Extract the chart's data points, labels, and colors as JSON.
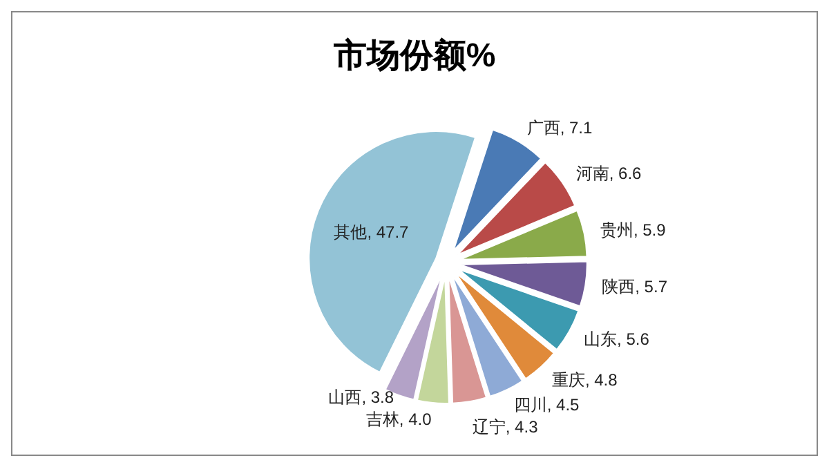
{
  "chart_data": {
    "type": "pie",
    "title": "市场份额%",
    "categories": [
      "广西",
      "河南",
      "贵州",
      "陕西",
      "山东",
      "重庆",
      "四川",
      "辽宁",
      "吉林",
      "山西",
      "其他"
    ],
    "values": [
      7.1,
      6.6,
      5.9,
      5.7,
      5.6,
      4.8,
      4.5,
      4.3,
      4.0,
      3.8,
      47.7
    ],
    "colors": [
      "#4a7ab5",
      "#b94a48",
      "#8aaa4a",
      "#6e5a96",
      "#3c9ab0",
      "#e08a3a",
      "#8eaad6",
      "#d99694",
      "#c3d69b",
      "#b3a2c7",
      "#93c3d6"
    ],
    "value_labels": [
      ", 7.1",
      ", 6.6",
      ", 5.9",
      ", 5.7",
      ", 5.6",
      ", 4.8",
      ", 4.5",
      ", 4.3",
      ", 4.0",
      ", 3.8",
      ", 47.7"
    ]
  }
}
